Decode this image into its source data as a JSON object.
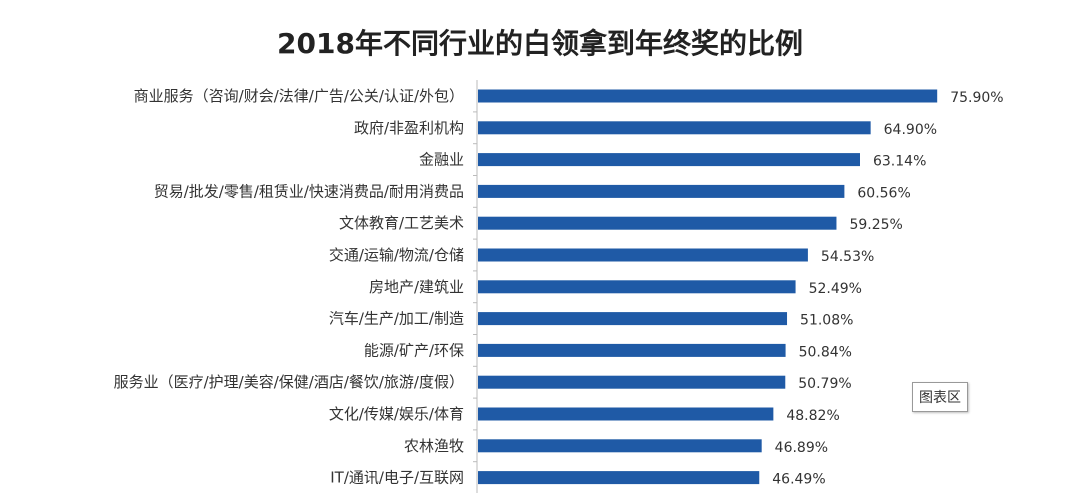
{
  "chart_data": {
    "type": "bar",
    "orientation": "horizontal",
    "title": "2018年不同行业的白领拿到年终奖的比例",
    "categories": [
      "商业服务（咨询/财会/法律/广告/公关/认证/外包）",
      "政府/非盈利机构",
      "金融业",
      "贸易/批发/零售/租赁业/快速消费品/耐用消费品",
      "文体教育/工艺美术",
      "交通/运输/物流/仓储",
      "房地产/建筑业",
      "汽车/生产/加工/制造",
      "能源/矿产/环保",
      "服务业（医疗/护理/美容/保健/酒店/餐饮/旅游/度假）",
      "文化/传媒/娱乐/体育",
      "农林渔牧",
      "IT/通讯/电子/互联网"
    ],
    "values": [
      75.9,
      64.9,
      63.14,
      60.56,
      59.25,
      54.53,
      52.49,
      51.08,
      50.84,
      50.79,
      48.82,
      46.89,
      46.49
    ],
    "data_labels": [
      "75.90%",
      "64.90%",
      "63.14%",
      "60.56%",
      "59.25%",
      "54.53%",
      "52.49%",
      "51.08%",
      "50.84%",
      "50.79%",
      "48.82%",
      "46.89%",
      "46.49%"
    ],
    "xlim": [
      0,
      100
    ],
    "grid": false,
    "bar_color": "#1f5aa6"
  },
  "tooltip": {
    "text": "图表区"
  }
}
